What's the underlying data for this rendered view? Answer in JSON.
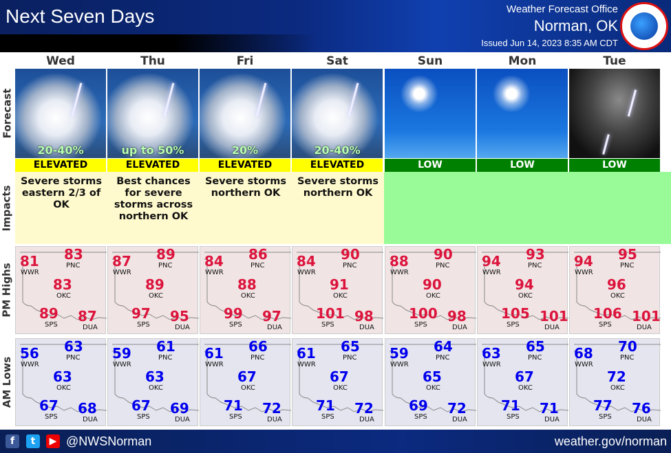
{
  "header": {
    "title": "Next Seven Days",
    "office": "Weather Forecast Office",
    "city": "Norman, OK",
    "issued": "Issued Jun 14, 2023 8:35 AM CDT",
    "logo_text": "NATIONAL WEATHER SERVICE"
  },
  "row_labels": {
    "forecast": "Forecast",
    "impacts": "Impacts",
    "highs": "PM Highs",
    "lows": "AM Lows"
  },
  "stations": [
    "WWR",
    "PNC",
    "OKC",
    "SPS",
    "DUA"
  ],
  "colors": {
    "elevated": "#ffff00",
    "low": "#008000",
    "highs": "#dc143c",
    "lows": "#0000ee",
    "impact_bg": "#fffacd",
    "impact_low_bg": "#98fb98"
  },
  "days": [
    {
      "name": "Wed",
      "icon": "thunderstorm",
      "chance": "20-40%",
      "risk": "ELEVATED",
      "impact": "Severe storms eastern 2/3 of OK",
      "highs": {
        "WWR": 81,
        "PNC": 83,
        "OKC": 83,
        "SPS": 89,
        "DUA": 87
      },
      "lows": {
        "WWR": 56,
        "PNC": 63,
        "OKC": 63,
        "SPS": 67,
        "DUA": 68
      }
    },
    {
      "name": "Thu",
      "icon": "thunderstorm",
      "chance": "up to 50%",
      "risk": "ELEVATED",
      "impact": "Best chances for severe storms across northern OK",
      "highs": {
        "WWR": 87,
        "PNC": 89,
        "OKC": 89,
        "SPS": 97,
        "DUA": 95
      },
      "lows": {
        "WWR": 59,
        "PNC": 61,
        "OKC": 63,
        "SPS": 67,
        "DUA": 69
      }
    },
    {
      "name": "Fri",
      "icon": "thunderstorm",
      "chance": "20%",
      "risk": "ELEVATED",
      "impact": "Severe storms northern OK",
      "highs": {
        "WWR": 84,
        "PNC": 86,
        "OKC": 88,
        "SPS": 99,
        "DUA": 97
      },
      "lows": {
        "WWR": 61,
        "PNC": 66,
        "OKC": 67,
        "SPS": 71,
        "DUA": 72
      }
    },
    {
      "name": "Sat",
      "icon": "thunderstorm",
      "chance": "20-40%",
      "risk": "ELEVATED",
      "impact": "Severe storms northern OK",
      "highs": {
        "WWR": 84,
        "PNC": 90,
        "OKC": 91,
        "SPS": 101,
        "DUA": 98
      },
      "lows": {
        "WWR": 61,
        "PNC": 65,
        "OKC": 67,
        "SPS": 71,
        "DUA": 72
      }
    },
    {
      "name": "Sun",
      "icon": "sunny",
      "chance": "",
      "risk": "LOW",
      "impact": "",
      "highs": {
        "WWR": 88,
        "PNC": 90,
        "OKC": 90,
        "SPS": 100,
        "DUA": 98
      },
      "lows": {
        "WWR": 59,
        "PNC": 64,
        "OKC": 65,
        "SPS": 69,
        "DUA": 72
      }
    },
    {
      "name": "Mon",
      "icon": "sunny",
      "chance": "",
      "risk": "LOW",
      "impact": "",
      "highs": {
        "WWR": 94,
        "PNC": 93,
        "OKC": 94,
        "SPS": 105,
        "DUA": 101
      },
      "lows": {
        "WWR": 63,
        "PNC": 65,
        "OKC": 67,
        "SPS": 71,
        "DUA": 71
      }
    },
    {
      "name": "Tue",
      "icon": "night-thunderstorm",
      "chance": "",
      "risk": "LOW",
      "impact": "",
      "highs": {
        "WWR": 94,
        "PNC": 95,
        "OKC": 96,
        "SPS": 106,
        "DUA": 101
      },
      "lows": {
        "WWR": 68,
        "PNC": 70,
        "OKC": 72,
        "SPS": 77,
        "DUA": 76
      }
    }
  ],
  "footer": {
    "handle": "@NWSNorman",
    "website": "weather.gov/norman",
    "social": [
      "facebook-icon",
      "twitter-icon",
      "youtube-icon"
    ]
  }
}
